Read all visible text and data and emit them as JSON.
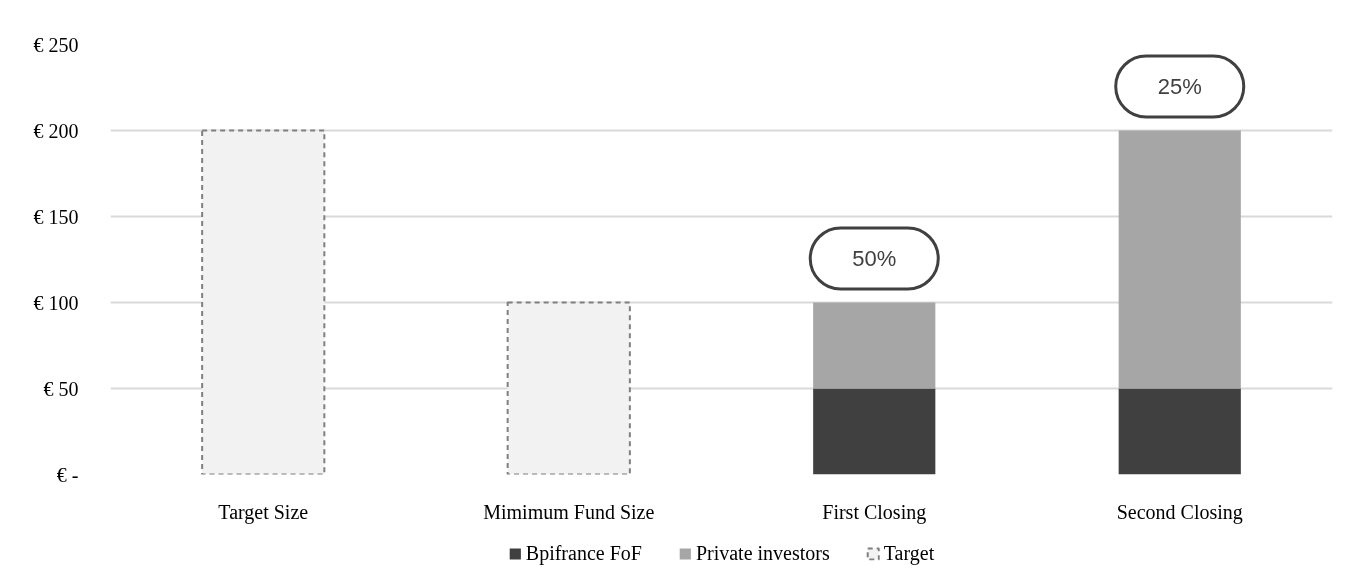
{
  "chart_data": {
    "type": "bar",
    "stacked": true,
    "categories": [
      "Target Size",
      "Mimimum Fund Size",
      "First Closing",
      "Second Closing"
    ],
    "series": [
      {
        "name": "Bpifrance FoF",
        "color": "#404040",
        "values": [
          null,
          null,
          50,
          50
        ]
      },
      {
        "name": "Private investors",
        "color": "#a6a6a6",
        "values": [
          null,
          null,
          50,
          150
        ]
      },
      {
        "name": "Target",
        "color": "#f2f2f2",
        "line_style": "dashed",
        "values": [
          200,
          100,
          null,
          null
        ]
      }
    ],
    "ylim": [
      0,
      250
    ],
    "yticks": [
      {
        "value": 0,
        "label": "€ -"
      },
      {
        "value": 50,
        "label": "€ 50"
      },
      {
        "value": 100,
        "label": "€ 100"
      },
      {
        "value": 150,
        "label": "€ 150"
      },
      {
        "value": 200,
        "label": "€ 200"
      },
      {
        "value": 250,
        "label": "€ 250"
      }
    ],
    "grid": "y",
    "legend": "bottom",
    "annotations": [
      {
        "text": "50%",
        "x": "First Closing",
        "y": 100
      },
      {
        "text": "25%",
        "x": "Second Closing",
        "y": 200
      }
    ]
  }
}
